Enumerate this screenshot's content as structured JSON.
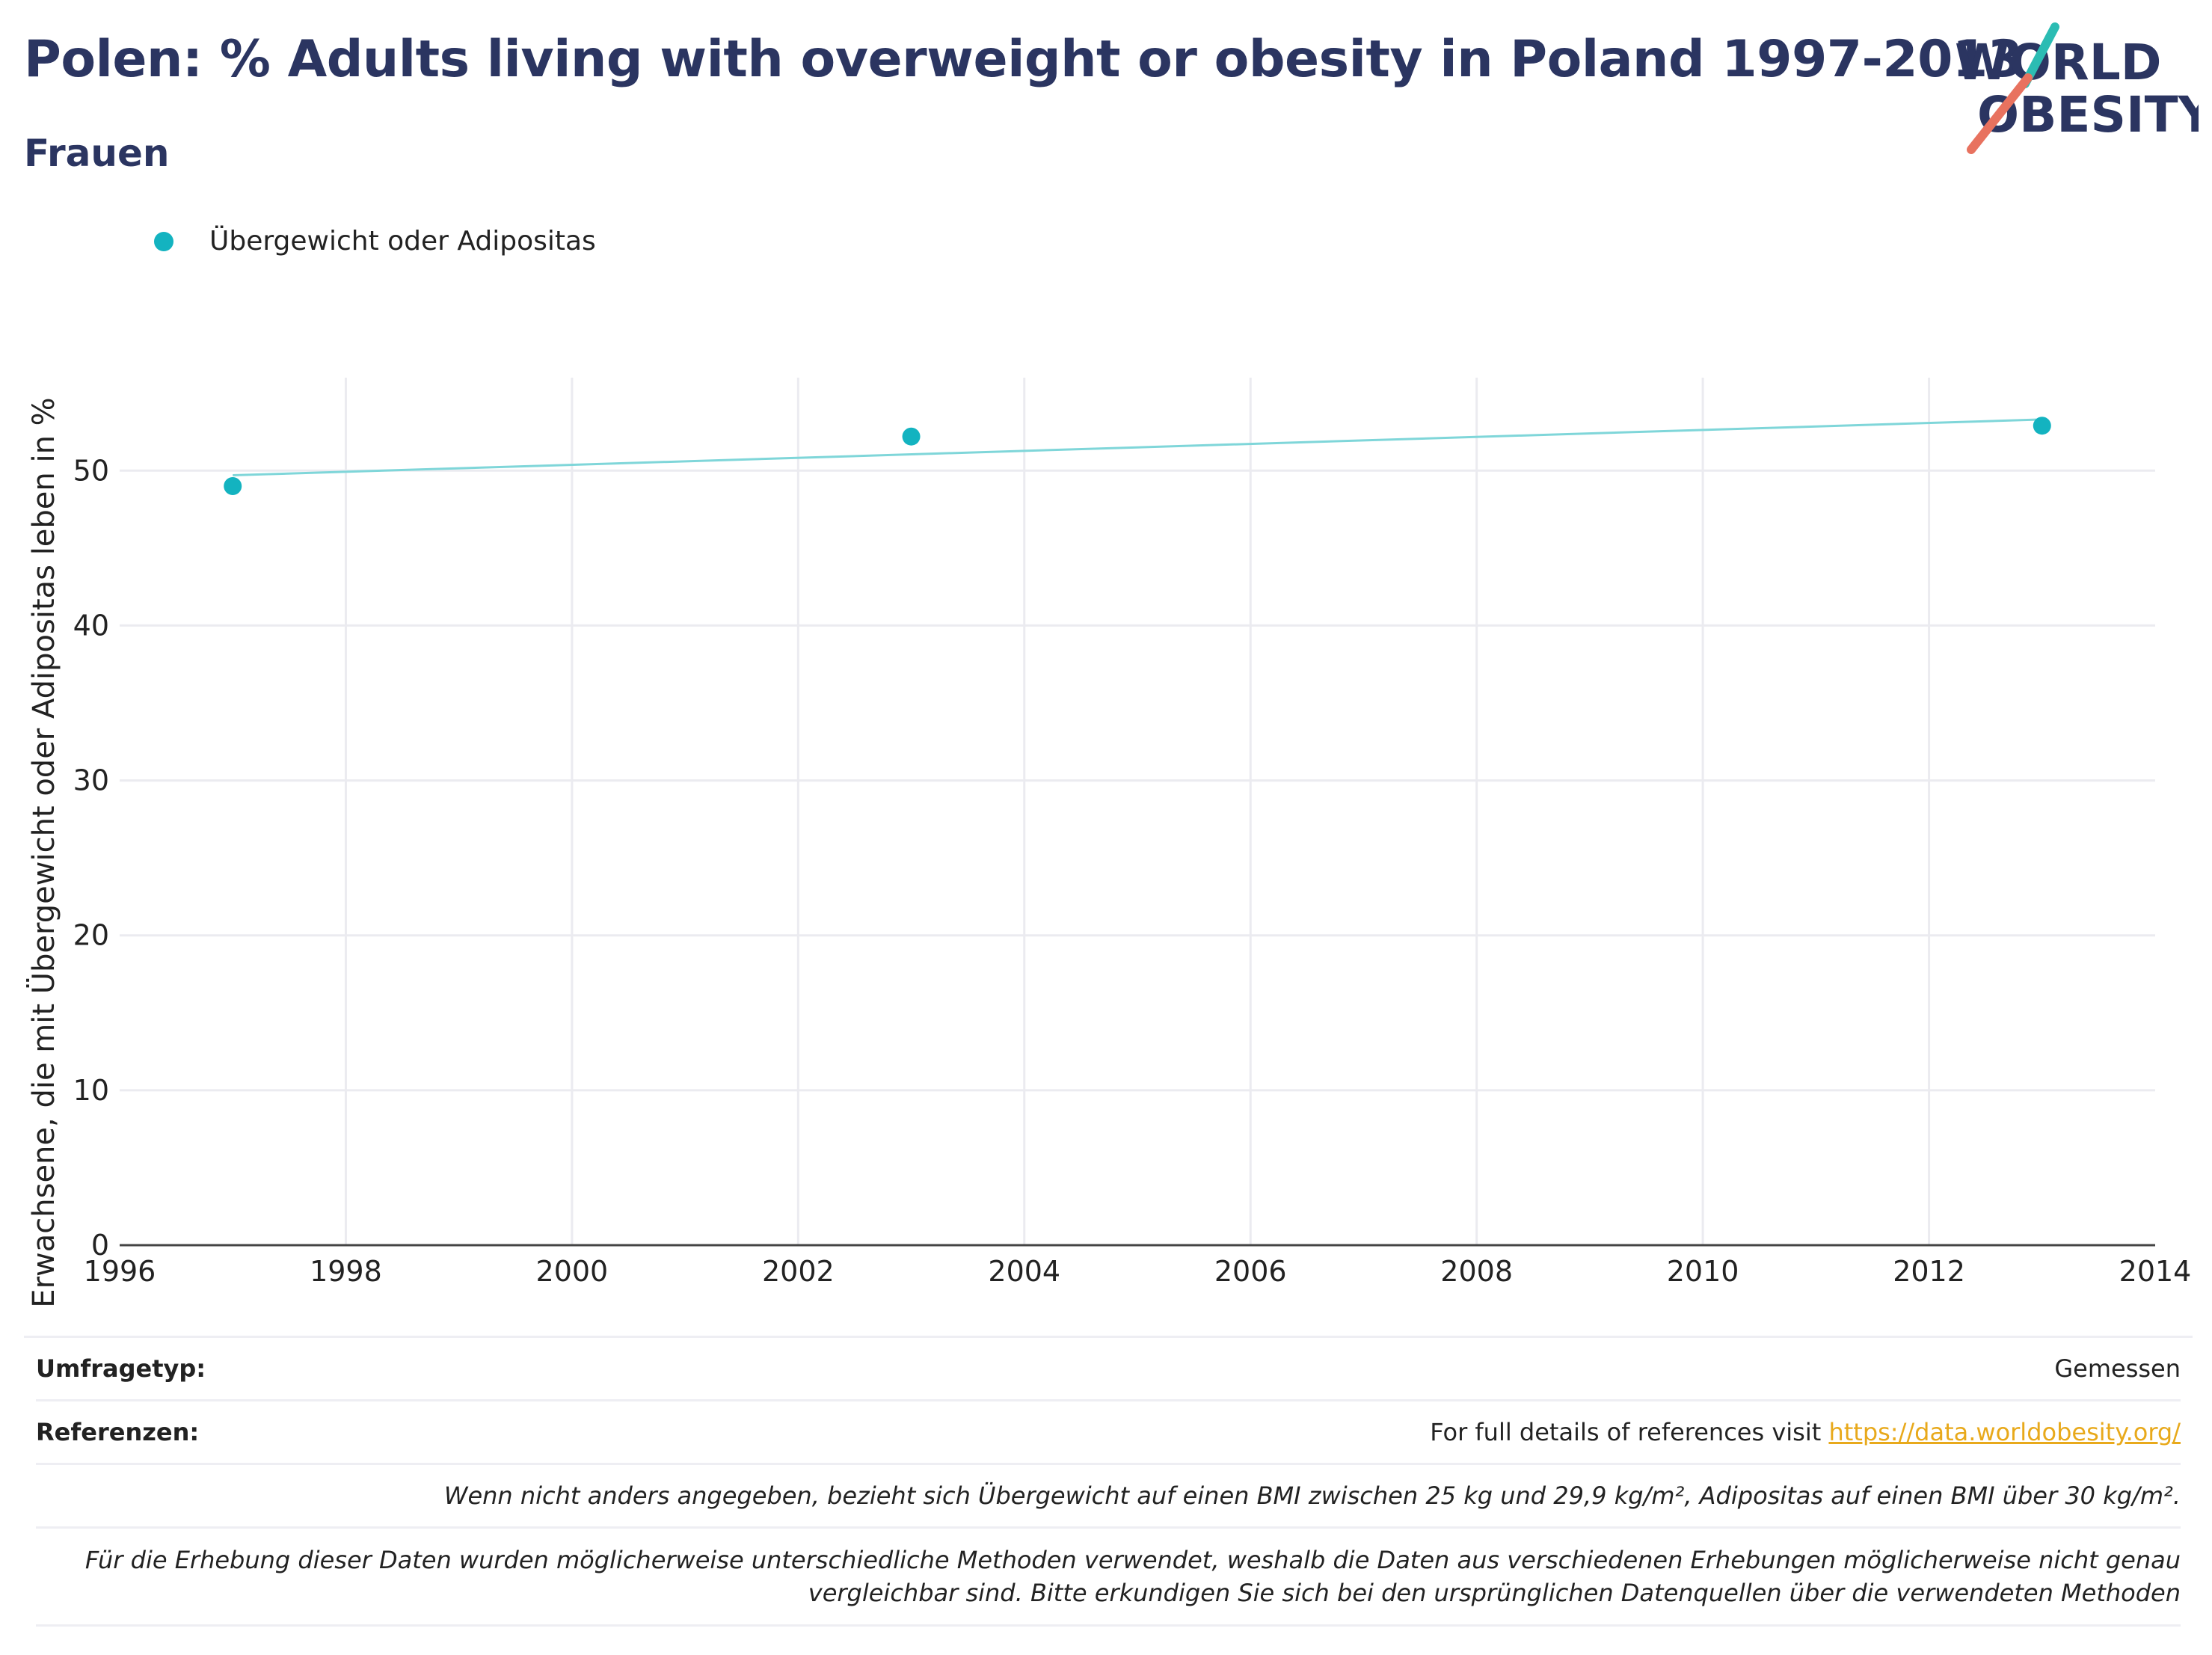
{
  "header": {
    "title": "Polen: % Adults living with overweight or obesity in Poland 1997-2013",
    "subtitle": "Frauen"
  },
  "logo": {
    "line1": "WORLD",
    "line2": "OBESITY",
    "accent_teal": "#2bbcb3",
    "accent_red": "#e8725f",
    "text_color": "#2b3561"
  },
  "legend": {
    "label": "Übergewicht oder Adipositas",
    "color": "#13b3c0"
  },
  "chart_data": {
    "type": "scatter",
    "x": [
      1997,
      2003,
      2013
    ],
    "series": [
      {
        "name": "Übergewicht oder Adipositas",
        "values": [
          49.0,
          52.2,
          52.9
        ],
        "color": "#13b3c0"
      }
    ],
    "trendline": {
      "x": [
        1997,
        2013
      ],
      "y": [
        49.7,
        53.3
      ],
      "color": "#7fd6d9"
    },
    "xlim": [
      1996,
      2014
    ],
    "ylim": [
      0,
      56
    ],
    "x_ticks": [
      1996,
      1998,
      2000,
      2002,
      2004,
      2006,
      2008,
      2010,
      2012,
      2014
    ],
    "y_ticks": [
      0,
      10,
      20,
      30,
      40,
      50
    ],
    "ylabel": "Erwachsene, die mit Übergewicht oder Adipositas leben in %",
    "xlabel": "",
    "grid": true,
    "legend_position": "top-left"
  },
  "footer": {
    "survey_label": "Umfragetyp:",
    "survey_value": "Gemessen",
    "ref_label": "Referenzen:",
    "ref_text": "For full details of references visit ",
    "ref_link": "https://data.worldobesity.org/",
    "note1": "Wenn nicht anders angegeben, bezieht sich Übergewicht auf einen BMI zwischen 25 kg und 29,9 kg/m², Adipositas auf einen BMI über 30 kg/m².",
    "note2a": "Für die Erhebung dieser Daten wurden möglicherweise unterschiedliche Methoden verwendet, weshalb die Daten aus verschiedenen Erhebungen möglicherweise nicht genau",
    "note2b": "vergleichbar sind. Bitte erkundigen Sie sich bei den ursprünglichen Datenquellen über die verwendeten Methoden"
  }
}
